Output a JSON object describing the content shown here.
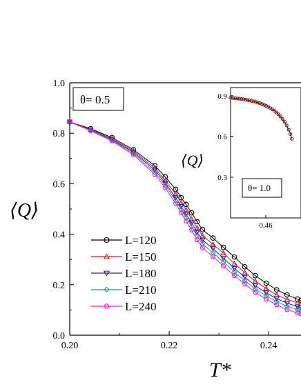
{
  "chart_data": [
    {
      "type": "line",
      "title": "",
      "xlabel": "T*",
      "ylabel": "⟨Q⟩",
      "xlim": [
        0.2,
        0.2465
      ],
      "ylim": [
        0.0,
        1.0
      ],
      "x_ticks": [
        "0.20",
        "0.22",
        "0.24"
      ],
      "y_ticks": [
        "0.0",
        "0.2",
        "0.4",
        "0.6",
        "0.8",
        "1.0"
      ],
      "annotation": "θ= 0.5",
      "legend": "lower-left",
      "x": [
        0.2,
        0.2042,
        0.2085,
        0.2128,
        0.2171,
        0.2192,
        0.2213,
        0.2224,
        0.2234,
        0.2245,
        0.2256,
        0.2267,
        0.2288,
        0.2309,
        0.2331,
        0.2352,
        0.2373,
        0.2395,
        0.2416,
        0.2437,
        0.2458,
        0.2465
      ],
      "series": [
        {
          "name": "L=120",
          "color": "#000000",
          "marker": "circle",
          "values": [
            0.845,
            0.818,
            0.783,
            0.735,
            0.672,
            0.627,
            0.578,
            0.545,
            0.518,
            0.485,
            0.45,
            0.418,
            0.385,
            0.348,
            0.31,
            0.271,
            0.236,
            0.206,
            0.18,
            0.16,
            0.143,
            0.138
          ]
        },
        {
          "name": "L=150",
          "color": "#e8141b",
          "marker": "triangle-up",
          "values": [
            0.845,
            0.815,
            0.779,
            0.73,
            0.662,
            0.612,
            0.56,
            0.525,
            0.497,
            0.46,
            0.425,
            0.395,
            0.36,
            0.325,
            0.284,
            0.248,
            0.214,
            0.185,
            0.16,
            0.142,
            0.128,
            0.125
          ]
        },
        {
          "name": "L=180",
          "color": "#1717e6",
          "marker": "triangle-down",
          "values": [
            0.845,
            0.813,
            0.775,
            0.725,
            0.654,
            0.603,
            0.545,
            0.51,
            0.48,
            0.446,
            0.408,
            0.377,
            0.343,
            0.305,
            0.265,
            0.23,
            0.196,
            0.168,
            0.145,
            0.127,
            0.113,
            0.11
          ]
        },
        {
          "name": "L=210",
          "color": "#1a9a96",
          "marker": "diamond",
          "values": [
            0.845,
            0.812,
            0.772,
            0.72,
            0.645,
            0.594,
            0.533,
            0.498,
            0.466,
            0.431,
            0.393,
            0.362,
            0.326,
            0.29,
            0.25,
            0.216,
            0.183,
            0.156,
            0.133,
            0.115,
            0.101,
            0.098
          ]
        },
        {
          "name": "L=240",
          "color": "#ee1be8",
          "marker": "pentagon",
          "values": [
            0.845,
            0.81,
            0.769,
            0.715,
            0.637,
            0.584,
            0.522,
            0.485,
            0.452,
            0.417,
            0.378,
            0.346,
            0.311,
            0.274,
            0.236,
            0.203,
            0.17,
            0.143,
            0.12,
            0.102,
            0.088,
            0.085
          ]
        }
      ]
    },
    {
      "type": "line",
      "title": "",
      "xlabel": "",
      "ylabel": "⟨Q⟩",
      "xlim": [
        0.435,
        0.485
      ],
      "ylim": [
        0.0,
        0.96
      ],
      "x_ticks": [
        "0.46"
      ],
      "y_ticks": [
        "0.3",
        "0.6",
        "0.9"
      ],
      "annotation": "θ= 1.0",
      "series": [
        {
          "color": "#8b1a1a",
          "marker": "circle",
          "x": [
            0.435,
            0.4367,
            0.4383,
            0.4398,
            0.4412,
            0.4427,
            0.4441,
            0.4456,
            0.4471,
            0.4485,
            0.45,
            0.4515,
            0.4529,
            0.4544,
            0.4558,
            0.4573,
            0.4588,
            0.4602,
            0.4617,
            0.4632,
            0.4646,
            0.4661,
            0.4675,
            0.469,
            0.4704,
            0.4719,
            0.4734,
            0.4748,
            0.4763,
            0.4775,
            0.4785
          ],
          "values": [
            0.885,
            0.883,
            0.882,
            0.88,
            0.878,
            0.876,
            0.874,
            0.871,
            0.868,
            0.865,
            0.862,
            0.858,
            0.854,
            0.85,
            0.845,
            0.839,
            0.833,
            0.826,
            0.818,
            0.809,
            0.8,
            0.789,
            0.777,
            0.763,
            0.747,
            0.729,
            0.707,
            0.681,
            0.65,
            0.618,
            0.583
          ]
        }
      ]
    }
  ]
}
